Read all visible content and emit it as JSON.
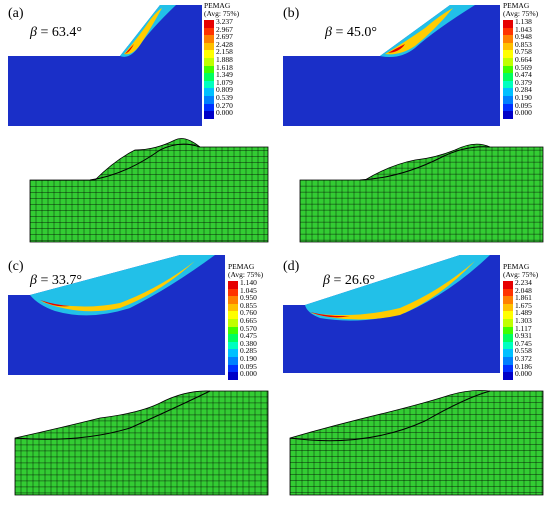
{
  "figure": {
    "panels": [
      {
        "label": "(a)",
        "beta_symbol": "β",
        "beta_value": " = 63.4°",
        "legend_title": "PEMAG",
        "legend_subtitle": "(Avg: 75%)",
        "legend_values": [
          "3.237",
          "2.967",
          "2.697",
          "2.428",
          "2.158",
          "1.888",
          "1.618",
          "1.349",
          "1.079",
          "0.809",
          "0.539",
          "0.270",
          "0.000"
        ]
      },
      {
        "label": "(b)",
        "beta_symbol": "β",
        "beta_value": " = 45.0°",
        "legend_title": "PEMAG",
        "legend_subtitle": "(Avg: 75%)",
        "legend_values": [
          "1.138",
          "1.043",
          "0.948",
          "0.853",
          "0.758",
          "0.664",
          "0.569",
          "0.474",
          "0.379",
          "0.284",
          "0.190",
          "0.095",
          "0.000"
        ]
      },
      {
        "label": "(c)",
        "beta_symbol": "β",
        "beta_value": " = 33.7°",
        "legend_title": "PEMAG",
        "legend_subtitle": "(Avg: 75%)",
        "legend_values": [
          "1.140",
          "1.045",
          "0.950",
          "0.855",
          "0.760",
          "0.665",
          "0.570",
          "0.475",
          "0.380",
          "0.285",
          "0.190",
          "0.095",
          "0.000"
        ]
      },
      {
        "label": "(d)",
        "beta_symbol": "β",
        "beta_value": " = 26.6°",
        "legend_title": "PEMAG",
        "legend_subtitle": "(Avg: 75%)",
        "legend_values": [
          "2.234",
          "2.048",
          "1.861",
          "1.675",
          "1.489",
          "1.303",
          "1.117",
          "0.931",
          "0.745",
          "0.558",
          "0.372",
          "0.186",
          "0.000"
        ]
      }
    ],
    "legend_colors": [
      "#e60000",
      "#ff3300",
      "#ff8000",
      "#ffc000",
      "#ffff00",
      "#c0ff00",
      "#40ff00",
      "#00ff60",
      "#00ffc0",
      "#00c0ff",
      "#0080ff",
      "#0030ff",
      "#0000c8"
    ],
    "colors": {
      "model_blue": "#1a2fc8",
      "mesh_green": "#33cc33",
      "mesh_line": "#000000"
    }
  }
}
